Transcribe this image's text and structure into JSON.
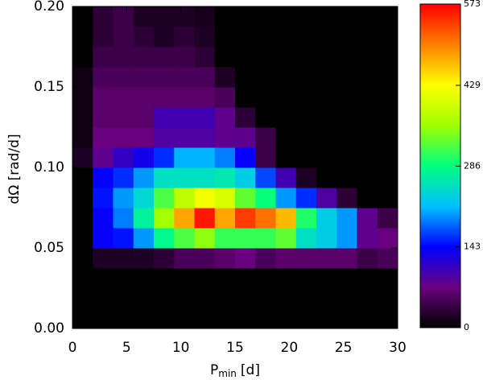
{
  "chart_data": {
    "type": "heatmap",
    "xlabel": "P",
    "xlabel_sub": "min",
    "xlabel_unit": "[d]",
    "ylabel": "dΩ [rad/d]",
    "xlim": [
      0,
      30
    ],
    "ylim": [
      0,
      0.2
    ],
    "xticks": [
      0,
      5,
      10,
      15,
      20,
      25,
      30
    ],
    "yticks": [
      {
        "value": 0,
        "label": "0.00"
      },
      {
        "value": 0.05,
        "label": "0.05"
      },
      {
        "value": 0.1,
        "label": "0.10"
      },
      {
        "value": 0.15,
        "label": "0.15"
      },
      {
        "value": 0.2,
        "label": "0.20"
      }
    ],
    "xbins": [
      0,
      1.875,
      3.75,
      5.625,
      7.5,
      9.375,
      11.25,
      13.125,
      15,
      16.875,
      18.75,
      20.625,
      22.5,
      24.375,
      26.25,
      28.125,
      30
    ],
    "ybins": [
      0,
      0.0125,
      0.025,
      0.0375,
      0.05,
      0.0625,
      0.075,
      0.0875,
      0.1,
      0.1125,
      0.125,
      0.1375,
      0.15,
      0.1625,
      0.175,
      0.1875,
      0.2
    ],
    "values": [
      [
        0,
        0,
        0,
        0,
        0,
        0,
        0,
        0,
        0,
        0,
        0,
        0,
        0,
        0,
        0,
        0
      ],
      [
        0,
        0,
        0,
        0,
        0,
        0,
        0,
        0,
        0,
        0,
        0,
        0,
        0,
        0,
        0,
        0
      ],
      [
        0,
        0,
        0,
        0,
        0,
        0,
        0,
        0,
        0,
        0,
        0,
        0,
        0,
        0,
        0,
        0
      ],
      [
        0,
        20,
        20,
        20,
        30,
        50,
        50,
        60,
        70,
        50,
        60,
        60,
        60,
        60,
        40,
        50
      ],
      [
        0,
        140,
        150,
        200,
        280,
        320,
        350,
        310,
        310,
        310,
        330,
        250,
        230,
        200,
        80,
        70
      ],
      [
        0,
        140,
        190,
        270,
        360,
        480,
        560,
        480,
        540,
        510,
        470,
        300,
        230,
        200,
        80,
        40
      ],
      [
        0,
        150,
        200,
        240,
        320,
        380,
        420,
        400,
        330,
        290,
        200,
        160,
        90,
        30,
        0,
        0
      ],
      [
        0,
        140,
        160,
        200,
        250,
        250,
        250,
        260,
        230,
        170,
        100,
        20,
        0,
        0,
        0,
        0
      ],
      [
        20,
        80,
        110,
        130,
        160,
        210,
        210,
        190,
        140,
        40,
        0,
        0,
        0,
        0,
        0,
        0
      ],
      [
        10,
        70,
        70,
        70,
        90,
        90,
        90,
        80,
        80,
        40,
        0,
        0,
        0,
        0,
        0,
        0
      ],
      [
        10,
        60,
        60,
        60,
        100,
        100,
        100,
        80,
        30,
        0,
        0,
        0,
        0,
        0,
        0,
        0
      ],
      [
        10,
        60,
        60,
        60,
        60,
        60,
        60,
        50,
        0,
        0,
        0,
        0,
        0,
        0,
        0,
        0
      ],
      [
        10,
        50,
        50,
        50,
        50,
        50,
        50,
        20,
        0,
        0,
        0,
        0,
        0,
        0,
        0,
        0
      ],
      [
        0,
        40,
        40,
        40,
        40,
        40,
        30,
        0,
        0,
        0,
        0,
        0,
        0,
        0,
        0,
        0
      ],
      [
        0,
        30,
        40,
        30,
        20,
        30,
        20,
        0,
        0,
        0,
        0,
        0,
        0,
        0,
        0,
        0
      ],
      [
        0,
        30,
        40,
        20,
        20,
        20,
        15,
        0,
        0,
        0,
        0,
        0,
        0,
        0,
        0,
        0
      ]
    ],
    "zlim": [
      0,
      573
    ],
    "zticks": [
      0,
      143,
      286,
      429,
      573
    ],
    "colormap": [
      "#000000",
      "#6a0080",
      "#0000ff",
      "#00c0ff",
      "#00ff80",
      "#a0ff00",
      "#ffff00",
      "#ff8000",
      "#ff0000"
    ]
  }
}
